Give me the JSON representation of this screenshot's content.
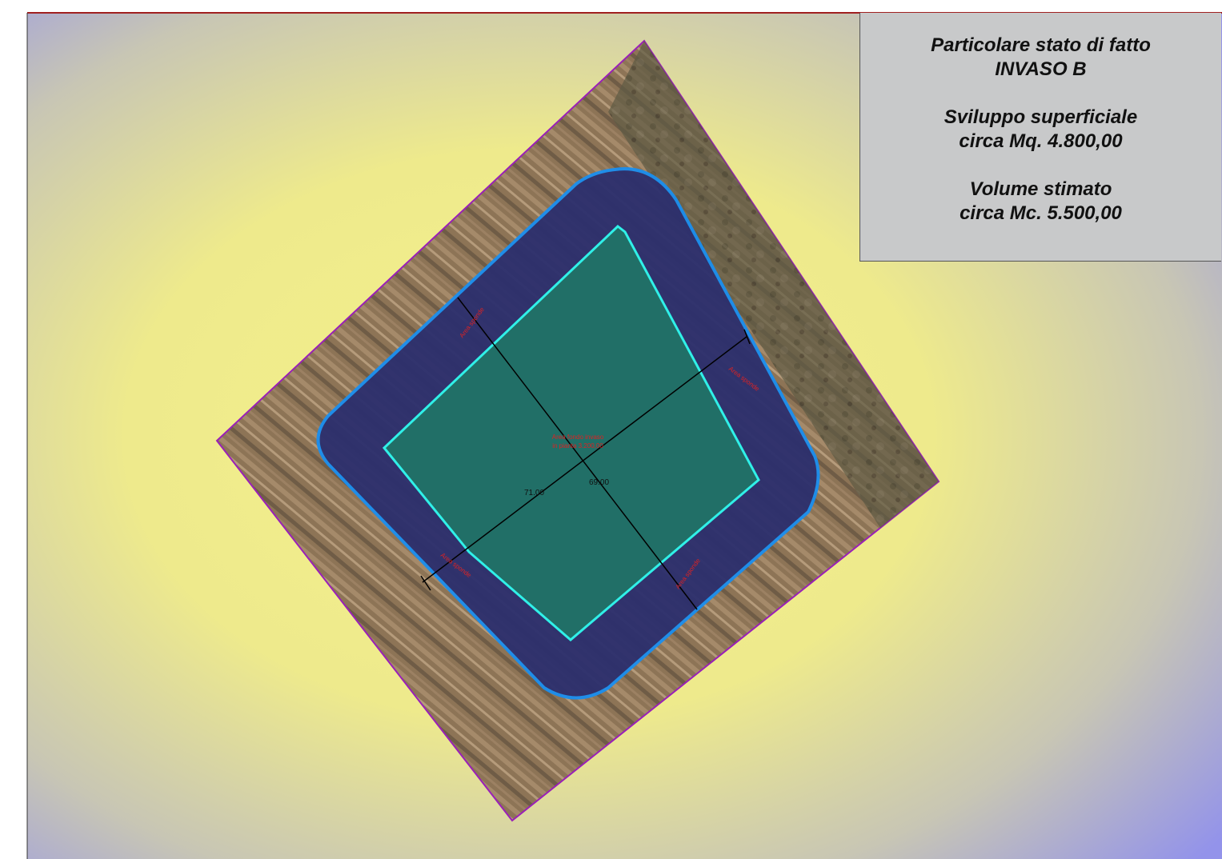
{
  "info": {
    "title_line1": "Particolare stato di fatto",
    "title_line2": "INVASO B",
    "surface_line1": "Sviluppo superficiale",
    "surface_line2": "circa Mq. 4.800,00",
    "volume_line1": "Volume stimato",
    "volume_line2": "circa Mc. 5.500,00"
  },
  "map": {
    "center_label_line1": "Area fondo invaso",
    "center_label_line2": "in pianta 3.200,00",
    "bank_labels": [
      "Area sponde",
      "Area sponde",
      "Area sponde",
      "Area sponde"
    ],
    "dimension_1": "71.00",
    "dimension_2": "69.00"
  },
  "colors": {
    "background_center": "#f2ee88",
    "background_edge": "#9898ee",
    "parcel_border": "#9a1fb8",
    "outer_water_line": "#1a8ff0",
    "inner_bottom_line": "#30f0e8",
    "inner_fill": "#1f7a66",
    "water_fill": "#2a2d6a",
    "label_red": "#dd2222",
    "top_frame_line": "#a02020"
  }
}
